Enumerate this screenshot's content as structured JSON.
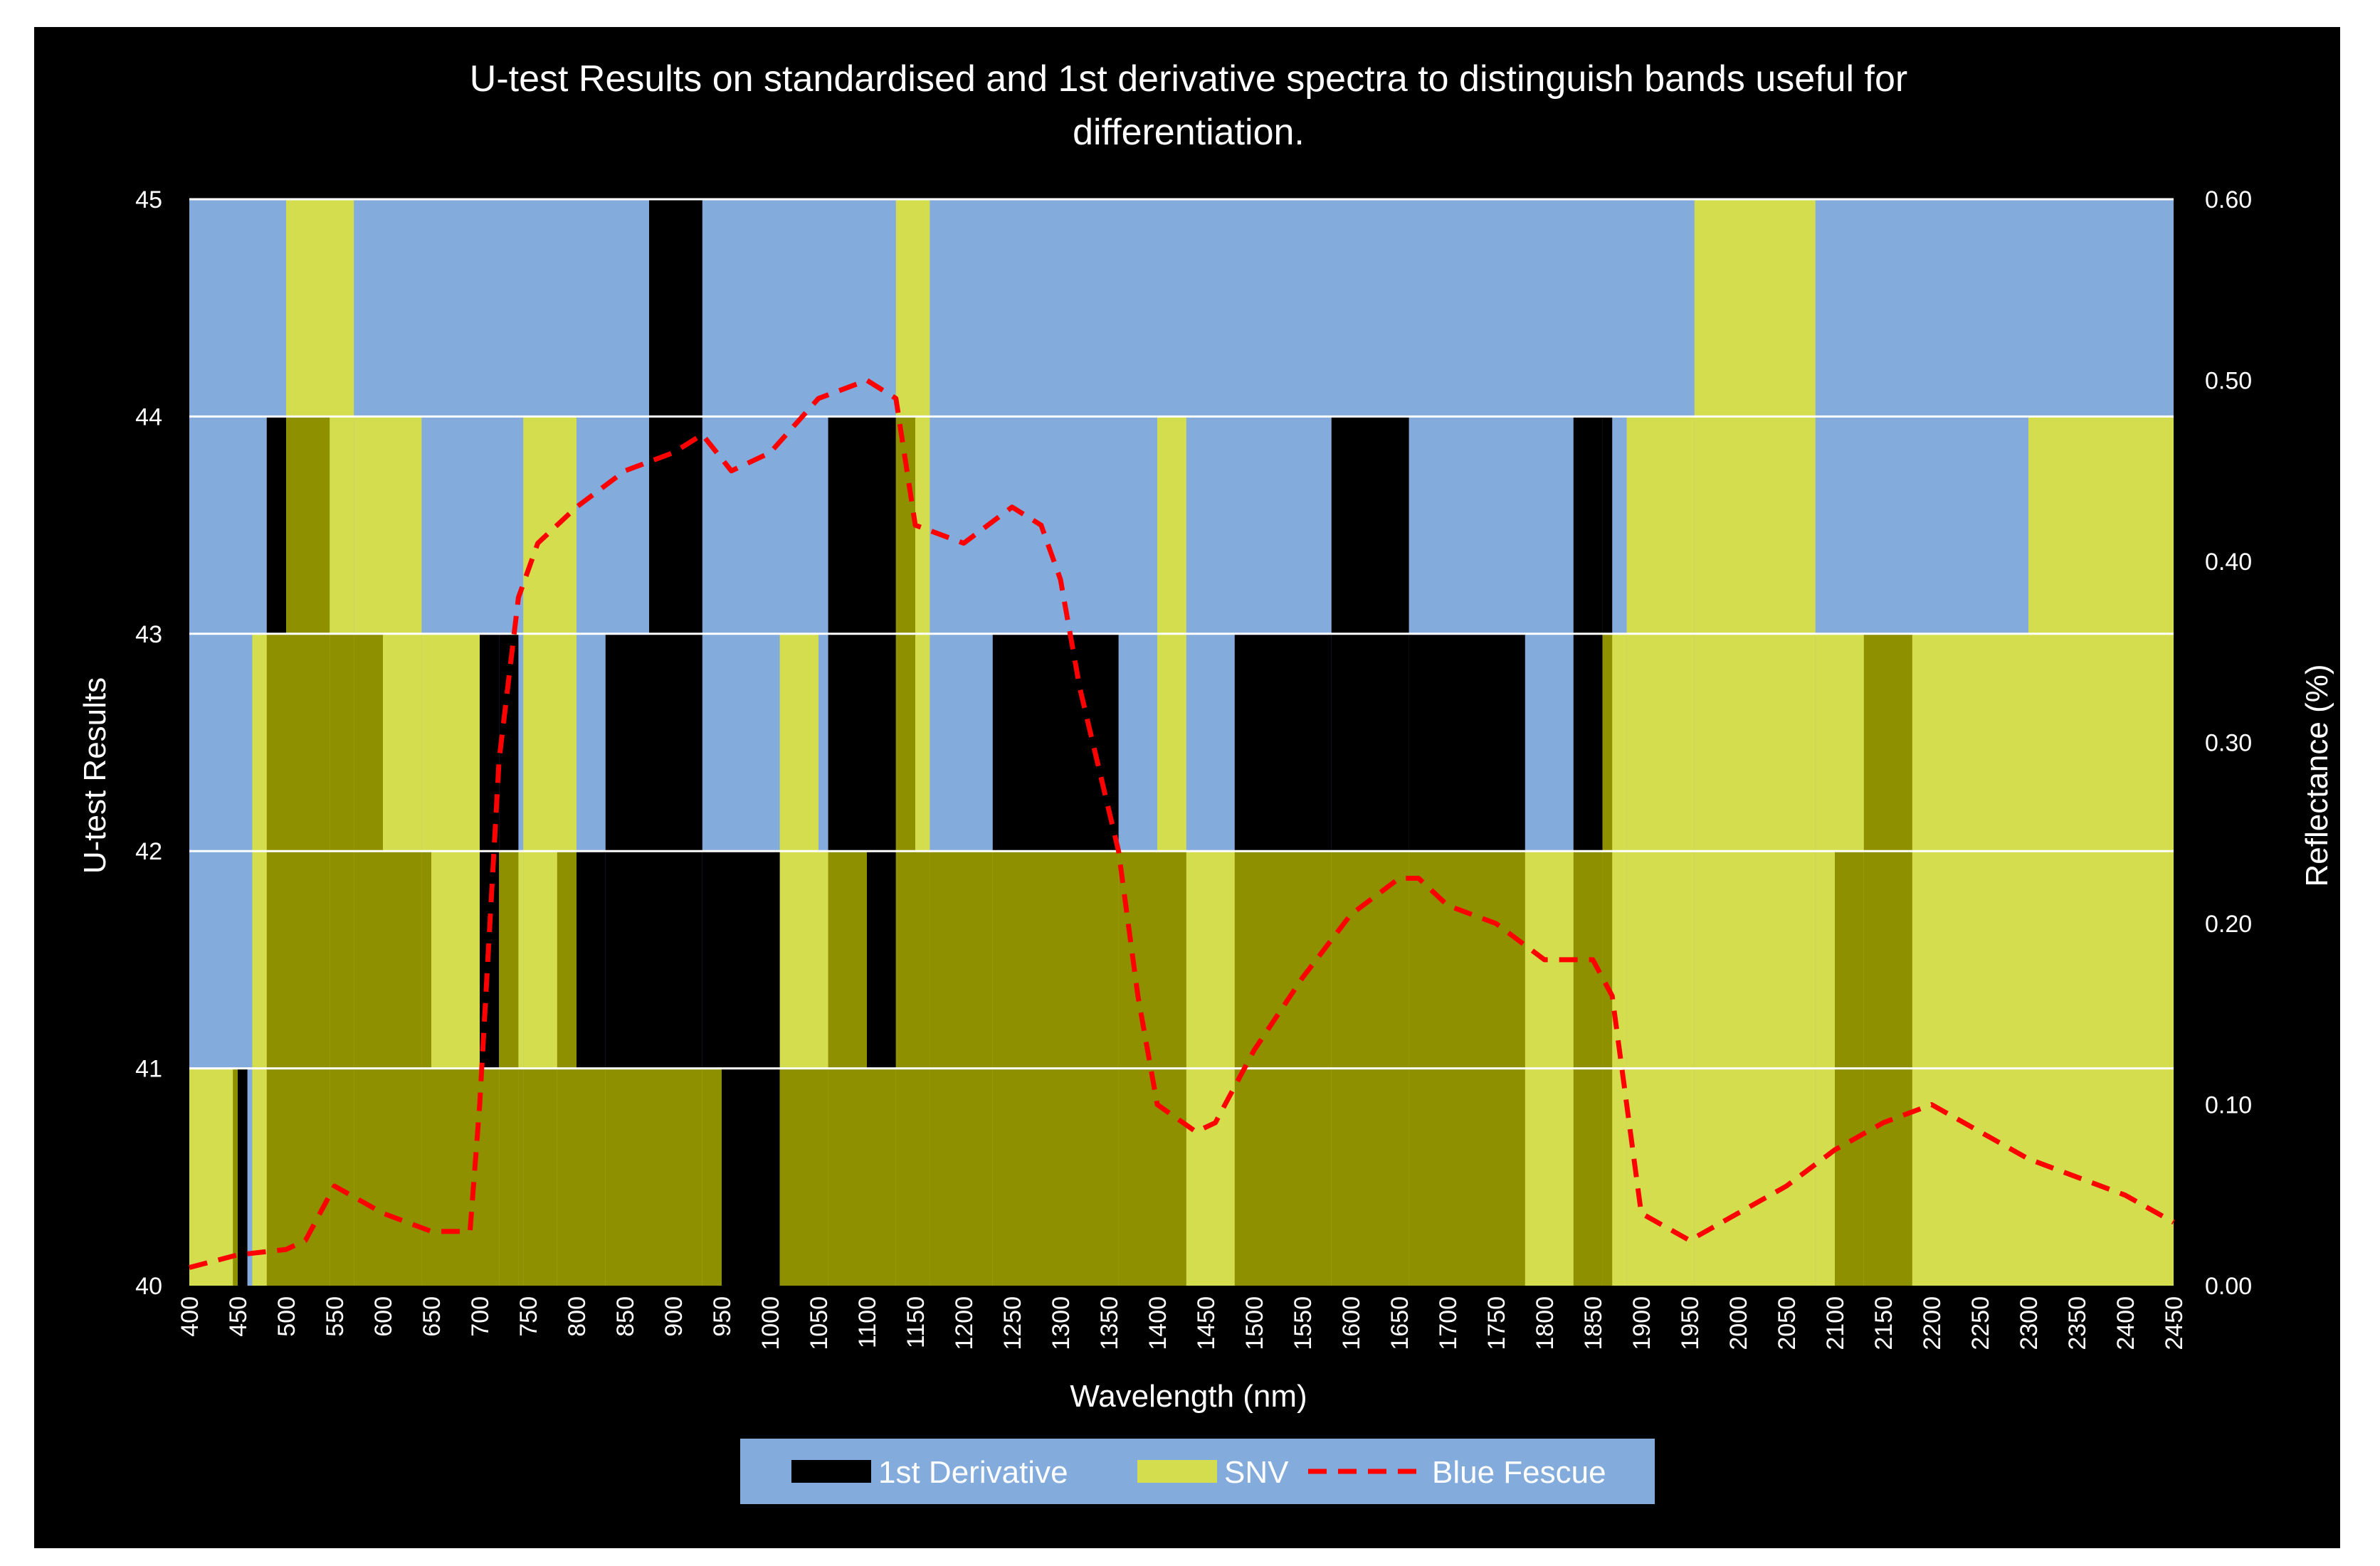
{
  "chart_data": {
    "type": "bar",
    "title_lines": [
      "U-test Results on standardised and 1st derivative spectra to distinguish bands useful for",
      "differentiation."
    ],
    "xlabel": "Wavelength (nm)",
    "ylabel_left": "U-test Results",
    "ylabel_right": "Reflectance (%)",
    "xlim": [
      400,
      2450
    ],
    "ylim_left": [
      40,
      45
    ],
    "ylim_right": [
      0.0,
      0.6
    ],
    "x_ticks": [
      "400",
      "450",
      "500",
      "550",
      "600",
      "650",
      "700",
      "750",
      "800",
      "850",
      "900",
      "950",
      "1000",
      "1050",
      "1100",
      "1150",
      "1200",
      "1250",
      "1300",
      "1350",
      "1400",
      "1450",
      "1500",
      "1550",
      "1600",
      "1650",
      "1700",
      "1750",
      "1800",
      "1850",
      "1900",
      "1950",
      "2000",
      "2050",
      "2100",
      "2150",
      "2200",
      "2250",
      "2300",
      "2350",
      "2400",
      "2450"
    ],
    "y_ticks_left": [
      "40",
      "41",
      "42",
      "43",
      "44",
      "45"
    ],
    "y_ticks_right": [
      "0.00",
      "0.10",
      "0.20",
      "0.30",
      "0.40",
      "0.50",
      "0.60"
    ],
    "grid": true,
    "legend_position": "bottom",
    "colors": {
      "background": "#83ABDC",
      "first_derivative": "#000000",
      "snv": "#D4DD4E",
      "overlap": "#8E9000",
      "blue_fescue": "#FF0000",
      "grid": "#FFFFFF"
    },
    "series": [
      {
        "name": "SNV",
        "kind": "bar",
        "note": "U-test score per wavelength band (piecewise-constant approximation)",
        "segments": [
          {
            "start": 400,
            "end": 450,
            "value": 41
          },
          {
            "start": 450,
            "end": 465,
            "value": 40
          },
          {
            "start": 465,
            "end": 500,
            "value": 43
          },
          {
            "start": 500,
            "end": 570,
            "value": 45
          },
          {
            "start": 570,
            "end": 640,
            "value": 44
          },
          {
            "start": 640,
            "end": 700,
            "value": 43
          },
          {
            "start": 700,
            "end": 720,
            "value": 41
          },
          {
            "start": 720,
            "end": 745,
            "value": 42
          },
          {
            "start": 745,
            "end": 800,
            "value": 44
          },
          {
            "start": 800,
            "end": 950,
            "value": 41
          },
          {
            "start": 950,
            "end": 1010,
            "value": 40
          },
          {
            "start": 1010,
            "end": 1050,
            "value": 43
          },
          {
            "start": 1050,
            "end": 1100,
            "value": 42
          },
          {
            "start": 1100,
            "end": 1130,
            "value": 41
          },
          {
            "start": 1130,
            "end": 1165,
            "value": 45
          },
          {
            "start": 1165,
            "end": 1400,
            "value": 42
          },
          {
            "start": 1400,
            "end": 1430,
            "value": 44
          },
          {
            "start": 1430,
            "end": 1860,
            "value": 42
          },
          {
            "start": 1860,
            "end": 1885,
            "value": 43
          },
          {
            "start": 1885,
            "end": 1955,
            "value": 44
          },
          {
            "start": 1955,
            "end": 2080,
            "value": 45
          },
          {
            "start": 2080,
            "end": 2300,
            "value": 43
          },
          {
            "start": 2300,
            "end": 2450,
            "value": 44
          }
        ]
      },
      {
        "name": "1st Derivative",
        "kind": "bar",
        "note": "U-test score per wavelength band (piecewise-constant approximation)",
        "segments": [
          {
            "start": 400,
            "end": 445,
            "value": 40
          },
          {
            "start": 445,
            "end": 460,
            "value": 41
          },
          {
            "start": 460,
            "end": 480,
            "value": 40
          },
          {
            "start": 480,
            "end": 545,
            "value": 44
          },
          {
            "start": 545,
            "end": 600,
            "value": 43
          },
          {
            "start": 600,
            "end": 650,
            "value": 42
          },
          {
            "start": 650,
            "end": 700,
            "value": 41
          },
          {
            "start": 700,
            "end": 740,
            "value": 43
          },
          {
            "start": 740,
            "end": 780,
            "value": 41
          },
          {
            "start": 780,
            "end": 830,
            "value": 42
          },
          {
            "start": 830,
            "end": 875,
            "value": 43
          },
          {
            "start": 875,
            "end": 930,
            "value": 45
          },
          {
            "start": 930,
            "end": 975,
            "value": 42
          },
          {
            "start": 975,
            "end": 1010,
            "value": 42
          },
          {
            "start": 1010,
            "end": 1060,
            "value": 41
          },
          {
            "start": 1060,
            "end": 1150,
            "value": 44
          },
          {
            "start": 1150,
            "end": 1230,
            "value": 42
          },
          {
            "start": 1230,
            "end": 1300,
            "value": 43
          },
          {
            "start": 1300,
            "end": 1360,
            "value": 43
          },
          {
            "start": 1360,
            "end": 1430,
            "value": 42
          },
          {
            "start": 1430,
            "end": 1480,
            "value": 40
          },
          {
            "start": 1480,
            "end": 1580,
            "value": 43
          },
          {
            "start": 1580,
            "end": 1660,
            "value": 44
          },
          {
            "start": 1660,
            "end": 1780,
            "value": 43
          },
          {
            "start": 1780,
            "end": 1830,
            "value": 40
          },
          {
            "start": 1830,
            "end": 1870,
            "value": 44
          },
          {
            "start": 1870,
            "end": 2100,
            "value": 40
          },
          {
            "start": 2100,
            "end": 2130,
            "value": 42
          },
          {
            "start": 2130,
            "end": 2180,
            "value": 43
          },
          {
            "start": 2180,
            "end": 2300,
            "value": 40
          },
          {
            "start": 2300,
            "end": 2450,
            "value": 40
          }
        ]
      },
      {
        "name": "Blue Fescue",
        "kind": "line",
        "style": "dashed",
        "axis": "right",
        "x": [
          400,
          450,
          500,
          520,
          550,
          600,
          650,
          690,
          700,
          720,
          740,
          760,
          800,
          850,
          900,
          930,
          960,
          1000,
          1050,
          1100,
          1130,
          1150,
          1200,
          1250,
          1280,
          1300,
          1320,
          1360,
          1380,
          1400,
          1440,
          1460,
          1500,
          1550,
          1600,
          1650,
          1670,
          1700,
          1750,
          1800,
          1850,
          1870,
          1900,
          1950,
          2000,
          2050,
          2100,
          2150,
          2200,
          2250,
          2300,
          2350,
          2400,
          2450
        ],
        "y": [
          0.01,
          0.017,
          0.02,
          0.025,
          0.055,
          0.04,
          0.03,
          0.03,
          0.1,
          0.29,
          0.38,
          0.41,
          0.43,
          0.45,
          0.46,
          0.47,
          0.45,
          0.46,
          0.49,
          0.5,
          0.49,
          0.42,
          0.41,
          0.43,
          0.42,
          0.39,
          0.33,
          0.24,
          0.16,
          0.1,
          0.085,
          0.09,
          0.13,
          0.17,
          0.205,
          0.225,
          0.225,
          0.21,
          0.2,
          0.18,
          0.18,
          0.16,
          0.04,
          0.025,
          0.04,
          0.055,
          0.075,
          0.09,
          0.1,
          0.085,
          0.07,
          0.06,
          0.05,
          0.035
        ]
      }
    ]
  }
}
